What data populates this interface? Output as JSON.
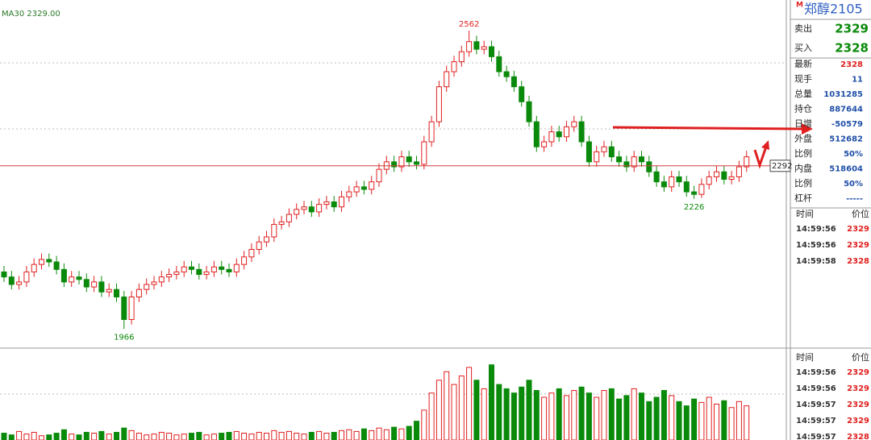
{
  "chart_data": {
    "type": "candlestick",
    "ma_label": "MA30 2329.00",
    "ylim": [
      1931,
      2604
    ],
    "hline": 2292,
    "open": [
      2080,
      2070,
      2055,
      2060,
      2080,
      2095,
      2105,
      2100,
      2085,
      2060,
      2070,
      2065,
      2050,
      2060,
      2040,
      2045,
      2030,
      1985,
      2030,
      2045,
      2055,
      2060,
      2070,
      2075,
      2080,
      2090,
      2085,
      2075,
      2080,
      2090,
      2085,
      2080,
      2095,
      2110,
      2125,
      2140,
      2150,
      2175,
      2180,
      2195,
      2205,
      2210,
      2200,
      2215,
      2220,
      2210,
      2230,
      2240,
      2250,
      2245,
      2260,
      2285,
      2300,
      2290,
      2310,
      2300,
      2295,
      2340,
      2380,
      2450,
      2480,
      2500,
      2520,
      2540,
      2525,
      2530,
      2510,
      2480,
      2470,
      2450,
      2420,
      2380,
      2330,
      2340,
      2360,
      2350,
      2370,
      2380,
      2340,
      2300,
      2320,
      2330,
      2310,
      2300,
      2290,
      2310,
      2300,
      2280,
      2260,
      2250,
      2270,
      2260,
      2240,
      2235,
      2255,
      2270,
      2280,
      2265,
      2270,
      2290
    ],
    "high": [
      2092,
      2082,
      2072,
      2092,
      2107,
      2117,
      2117,
      2112,
      2097,
      2082,
      2082,
      2077,
      2072,
      2072,
      2057,
      2057,
      2042,
      2042,
      2057,
      2067,
      2072,
      2082,
      2087,
      2092,
      2102,
      2102,
      2097,
      2092,
      2102,
      2102,
      2097,
      2107,
      2122,
      2137,
      2152,
      2162,
      2187,
      2192,
      2207,
      2217,
      2222,
      2222,
      2227,
      2232,
      2232,
      2242,
      2252,
      2262,
      2262,
      2272,
      2297,
      2312,
      2312,
      2322,
      2322,
      2312,
      2352,
      2392,
      2462,
      2492,
      2512,
      2532,
      2562,
      2552,
      2542,
      2542,
      2522,
      2492,
      2482,
      2462,
      2432,
      2392,
      2352,
      2372,
      2372,
      2382,
      2392,
      2392,
      2352,
      2332,
      2342,
      2342,
      2322,
      2312,
      2322,
      2322,
      2312,
      2292,
      2272,
      2282,
      2282,
      2272,
      2252,
      2267,
      2282,
      2292,
      2292,
      2282,
      2302,
      2322
    ],
    "low": [
      2060,
      2045,
      2045,
      2050,
      2070,
      2085,
      2090,
      2075,
      2050,
      2050,
      2055,
      2040,
      2040,
      2030,
      2030,
      2020,
      1966,
      1975,
      2020,
      2035,
      2045,
      2050,
      2060,
      2065,
      2070,
      2075,
      2065,
      2065,
      2070,
      2075,
      2070,
      2070,
      2085,
      2100,
      2115,
      2130,
      2140,
      2165,
      2170,
      2185,
      2195,
      2190,
      2190,
      2205,
      2200,
      2200,
      2220,
      2230,
      2235,
      2235,
      2250,
      2275,
      2280,
      2280,
      2290,
      2285,
      2285,
      2330,
      2370,
      2440,
      2470,
      2490,
      2510,
      2515,
      2515,
      2500,
      2470,
      2460,
      2440,
      2410,
      2370,
      2320,
      2320,
      2330,
      2340,
      2340,
      2360,
      2330,
      2290,
      2290,
      2310,
      2300,
      2290,
      2280,
      2280,
      2290,
      2270,
      2250,
      2240,
      2240,
      2250,
      2230,
      2226,
      2228,
      2245,
      2260,
      2255,
      2255,
      2260,
      2280
    ],
    "close": [
      2070,
      2055,
      2060,
      2080,
      2095,
      2105,
      2100,
      2085,
      2060,
      2070,
      2065,
      2050,
      2060,
      2040,
      2045,
      2030,
      1985,
      2030,
      2045,
      2055,
      2060,
      2070,
      2075,
      2080,
      2090,
      2085,
      2075,
      2080,
      2090,
      2085,
      2080,
      2095,
      2110,
      2125,
      2140,
      2150,
      2175,
      2180,
      2195,
      2205,
      2210,
      2200,
      2215,
      2220,
      2210,
      2230,
      2240,
      2250,
      2245,
      2260,
      2285,
      2300,
      2290,
      2310,
      2300,
      2295,
      2340,
      2380,
      2450,
      2480,
      2500,
      2520,
      2540,
      2525,
      2530,
      2510,
      2480,
      2470,
      2450,
      2420,
      2380,
      2330,
      2340,
      2360,
      2350,
      2370,
      2380,
      2340,
      2300,
      2320,
      2330,
      2310,
      2300,
      2290,
      2310,
      2300,
      2280,
      2260,
      2250,
      2270,
      2260,
      2240,
      2235,
      2255,
      2270,
      2280,
      2265,
      2270,
      2290,
      2310
    ],
    "volume": [
      8,
      6,
      10,
      7,
      9,
      5,
      6,
      8,
      12,
      7,
      6,
      9,
      8,
      10,
      7,
      9,
      14,
      11,
      8,
      6,
      7,
      9,
      8,
      6,
      7,
      8,
      9,
      6,
      7,
      8,
      9,
      10,
      8,
      7,
      9,
      8,
      11,
      9,
      10,
      8,
      7,
      9,
      10,
      8,
      9,
      11,
      12,
      10,
      13,
      11,
      14,
      12,
      15,
      13,
      16,
      22,
      35,
      55,
      70,
      80,
      65,
      75,
      85,
      70,
      60,
      88,
      65,
      60,
      55,
      62,
      70,
      58,
      50,
      55,
      60,
      52,
      58,
      62,
      55,
      50,
      58,
      60,
      48,
      52,
      60,
      55,
      45,
      50,
      58,
      52,
      45,
      40,
      48,
      44,
      50,
      42,
      46,
      38,
      45,
      40
    ],
    "volume_ylim": [
      0,
      100
    ],
    "up_color": "#e02020",
    "down_color": "#0a8a0a"
  },
  "panel": {
    "badge": "M",
    "title": "郑醇2105",
    "quotes": [
      [
        "卖出",
        "2329"
      ],
      [
        "买入",
        "2328"
      ]
    ],
    "stats": [
      [
        "最新",
        "2328"
      ],
      [
        "现手",
        "11"
      ],
      [
        "总量",
        "1031285"
      ],
      [
        "持仓",
        "887644"
      ],
      [
        "日增",
        "-50579"
      ],
      [
        "外盘",
        "512682"
      ],
      [
        "比例",
        "50%"
      ],
      [
        "内盘",
        "518604"
      ],
      [
        "比例",
        "50%"
      ],
      [
        "杠杆",
        "-----"
      ]
    ],
    "trades_top": {
      "header": [
        "时间",
        "价位"
      ],
      "rows": [
        [
          "14:59:56",
          "2329"
        ],
        [
          "14:59:56",
          "2329"
        ],
        [
          "14:59:58",
          "2328"
        ]
      ]
    },
    "trades_bottom": {
      "header": [
        "时间",
        "价位"
      ],
      "rows": [
        [
          "14:59:56",
          "2329"
        ],
        [
          "14:59:56",
          "2329"
        ],
        [
          "14:59:57",
          "2329"
        ],
        [
          "14:59:57",
          "2329"
        ],
        [
          "14:59:57",
          "2328"
        ]
      ]
    }
  }
}
